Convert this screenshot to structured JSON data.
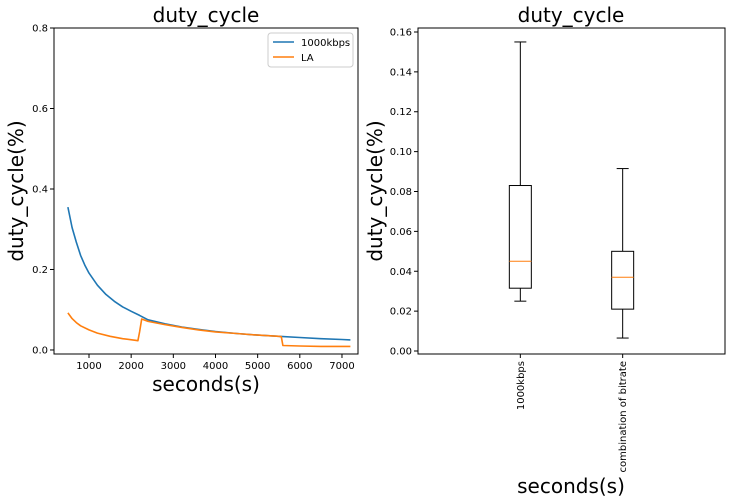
{
  "chart_data": [
    {
      "type": "line",
      "title": "duty_cycle",
      "xlabel": "seconds(s)",
      "ylabel": "duty_cycle(%)",
      "xlim": [
        170,
        7380
      ],
      "ylim": [
        -0.01,
        0.8
      ],
      "xticks": [
        1000,
        2000,
        3000,
        4000,
        5000,
        6000,
        7000
      ],
      "xtick_labels": [
        "1000",
        "2000",
        "3000",
        "4000",
        "5000",
        "6000",
        "7000"
      ],
      "yticks": [
        0.0,
        0.2,
        0.4,
        0.6,
        0.8
      ],
      "ytick_labels": [
        "0.0",
        "0.2",
        "0.4",
        "0.6",
        "0.8"
      ],
      "grid": false,
      "legend": "top-right",
      "series": [
        {
          "name": "1000kbps",
          "color": "#1f77b4",
          "x": [
            500,
            600,
            700,
            800,
            900,
            1000,
            1200,
            1400,
            1600,
            1800,
            2000,
            2200,
            2400,
            2800,
            3200,
            3600,
            4000,
            4500,
            5000,
            5500,
            6000,
            6500,
            7000,
            7200
          ],
          "y": [
            0.355,
            0.304,
            0.268,
            0.235,
            0.211,
            0.191,
            0.161,
            0.138,
            0.121,
            0.107,
            0.096,
            0.086,
            0.075,
            0.065,
            0.057,
            0.051,
            0.046,
            0.041,
            0.037,
            0.034,
            0.031,
            0.028,
            0.026,
            0.025
          ]
        },
        {
          "name": "LA",
          "color": "#ff7f0e",
          "x": [
            500,
            600,
            700,
            800,
            1000,
            1200,
            1500,
            1800,
            2100,
            2160,
            2200,
            2250,
            2400,
            2800,
            3200,
            3600,
            4000,
            4500,
            5000,
            5500,
            5560,
            5600,
            6000,
            6500,
            7000,
            7200
          ],
          "y": [
            0.092,
            0.078,
            0.068,
            0.06,
            0.05,
            0.042,
            0.034,
            0.028,
            0.024,
            0.023,
            0.045,
            0.077,
            0.071,
            0.063,
            0.056,
            0.05,
            0.045,
            0.041,
            0.037,
            0.034,
            0.033,
            0.011,
            0.01,
            0.009,
            0.009,
            0.009
          ]
        }
      ]
    },
    {
      "type": "box",
      "title": "duty_cycle",
      "xlabel": "seconds(s)",
      "ylabel": "duty_cycle(%)",
      "ylim": [
        -0.0015,
        0.162
      ],
      "yticks": [
        0.0,
        0.02,
        0.04,
        0.06,
        0.08,
        0.1,
        0.12,
        0.14,
        0.16
      ],
      "ytick_labels": [
        "0.00",
        "0.02",
        "0.04",
        "0.06",
        "0.08",
        "0.10",
        "0.12",
        "0.14",
        "0.16"
      ],
      "categories": [
        "1000kbps",
        "combination of bitrate"
      ],
      "grid": false,
      "median_color": "#ff7f0e",
      "boxes": [
        {
          "name": "1000kbps",
          "whisker_low": 0.025,
          "q1": 0.0315,
          "median": 0.045,
          "q3": 0.083,
          "whisker_high": 0.155
        },
        {
          "name": "combination of bitrate",
          "whisker_low": 0.0065,
          "q1": 0.021,
          "median": 0.037,
          "q3": 0.05,
          "whisker_high": 0.0915
        }
      ]
    }
  ]
}
